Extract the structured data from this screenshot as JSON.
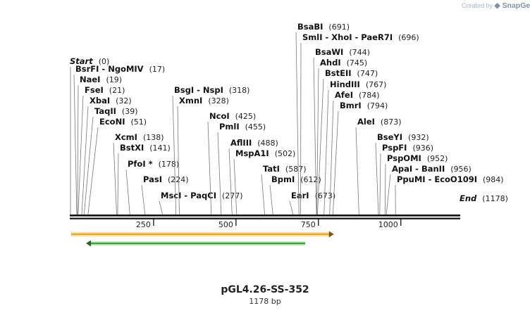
{
  "watermark": {
    "created_by": "Created by",
    "brand": "SnapGene"
  },
  "map": {
    "title": "pGL4.26-SS-352",
    "length_label": "1178 bp",
    "length": 1178,
    "ticks": [
      250,
      500,
      750,
      1000
    ],
    "start_label": {
      "name": "Start",
      "pos": "(0)"
    },
    "end_label": {
      "name": "End",
      "pos": "(1178)"
    },
    "features": [
      {
        "name": "feature-orange",
        "start": 0,
        "end": 797,
        "direction": "forward",
        "color": "#e8a33a"
      },
      {
        "name": "feature-green",
        "start": 45,
        "end": 710,
        "direction": "reverse",
        "color": "#3aa63a"
      }
    ],
    "sites": [
      {
        "label": "BsrFI  -  NgoMIV",
        "pos": "(17)",
        "bp": 17
      },
      {
        "label": "NaeI",
        "pos": "(19)",
        "bp": 19
      },
      {
        "label": "FseI",
        "pos": "(21)",
        "bp": 21
      },
      {
        "label": "XbaI",
        "pos": "(32)",
        "bp": 32
      },
      {
        "label": "TaqII",
        "pos": "(39)",
        "bp": 39
      },
      {
        "label": "EcoNI",
        "pos": "(51)",
        "bp": 51
      },
      {
        "label": "XcmI",
        "pos": "(138)",
        "bp": 138
      },
      {
        "label": "BstXI",
        "pos": "(141)",
        "bp": 141
      },
      {
        "label": "PfoI *",
        "pos": "(178)",
        "bp": 178
      },
      {
        "label": "PasI",
        "pos": "(224)",
        "bp": 224
      },
      {
        "label": "MscI  -  PaqCI",
        "pos": "(277)",
        "bp": 277
      },
      {
        "label": "BsgI  -  NspI",
        "pos": "(318)",
        "bp": 318
      },
      {
        "label": "XmnI",
        "pos": "(328)",
        "bp": 328
      },
      {
        "label": "NcoI",
        "pos": "(425)",
        "bp": 425
      },
      {
        "label": "PmlI",
        "pos": "(455)",
        "bp": 455
      },
      {
        "label": "AflIII",
        "pos": "(488)",
        "bp": 488
      },
      {
        "label": "MspA1I",
        "pos": "(502)",
        "bp": 502
      },
      {
        "label": "TatI",
        "pos": "(587)",
        "bp": 587
      },
      {
        "label": "BpmI",
        "pos": "(612)",
        "bp": 612
      },
      {
        "label": "EarI",
        "pos": "(673)",
        "bp": 673
      },
      {
        "label": "BsaBI",
        "pos": "(691)",
        "bp": 691
      },
      {
        "label": "SmlI  -  XhoI  -  PaeR7I",
        "pos": "(696)",
        "bp": 696
      },
      {
        "label": "BsaWI",
        "pos": "(744)",
        "bp": 744
      },
      {
        "label": "AhdI",
        "pos": "(745)",
        "bp": 745
      },
      {
        "label": "BstEII",
        "pos": "(747)",
        "bp": 747
      },
      {
        "label": "HindIII",
        "pos": "(767)",
        "bp": 767
      },
      {
        "label": "AfeI",
        "pos": "(784)",
        "bp": 784
      },
      {
        "label": "BmrI",
        "pos": "(794)",
        "bp": 794
      },
      {
        "label": "AleI",
        "pos": "(873)",
        "bp": 873
      },
      {
        "label": "BseYI",
        "pos": "(932)",
        "bp": 932
      },
      {
        "label": "PspFI",
        "pos": "(936)",
        "bp": 936
      },
      {
        "label": "PspOMI",
        "pos": "(952)",
        "bp": 952
      },
      {
        "label": "ApaI  -  BanII",
        "pos": "(956)",
        "bp": 956
      },
      {
        "label": "PpuMI  -  EcoO109I",
        "pos": "(984)",
        "bp": 984
      }
    ]
  }
}
